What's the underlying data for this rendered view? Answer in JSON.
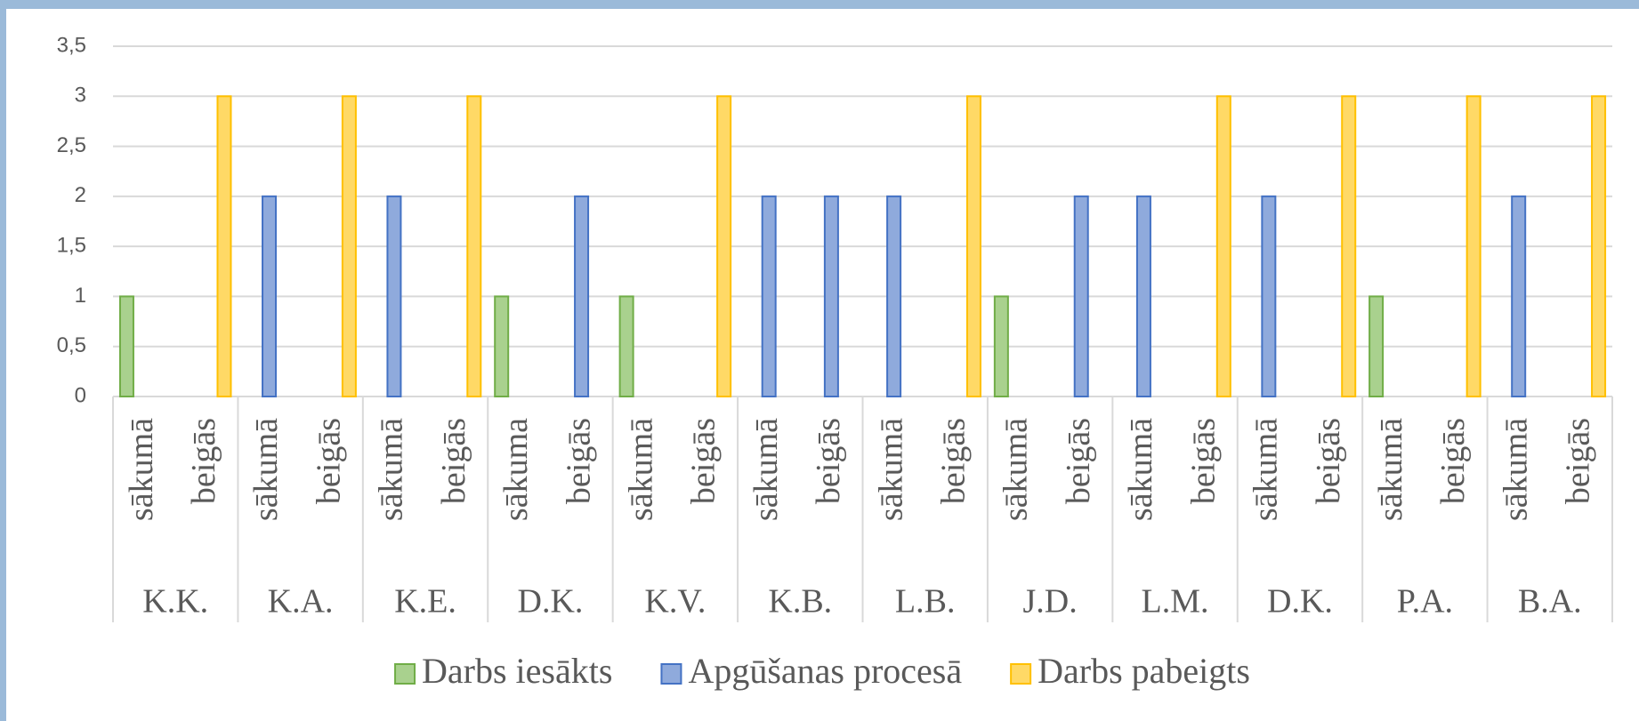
{
  "chart_data": {
    "type": "bar",
    "groups": [
      "K.K.",
      "K.A.",
      "K.E.",
      "D.K.",
      "K.V.",
      "K.B.",
      "L.B.",
      "J.D.",
      "L.M.",
      "D.K.",
      "P.A.",
      "B.A."
    ],
    "categories": [
      "sākumā",
      "beigās",
      "sākumā",
      "beigās",
      "sākumā",
      "beigās",
      "sākuma",
      "beigās",
      "sākumā",
      "beigās",
      "sākumā",
      "beigās",
      "sākumā",
      "beigās",
      "sākumā",
      "beigās",
      "sākumā",
      "beigās",
      "sākumā",
      "beigās",
      "sākumā",
      "beigās",
      "sākumā",
      "beigās"
    ],
    "series": [
      {
        "name": "Darbs iesākts",
        "color": "#a9d18e",
        "edge": "#70ad47",
        "values": [
          1,
          null,
          null,
          null,
          null,
          null,
          1,
          null,
          1,
          null,
          null,
          null,
          null,
          null,
          1,
          null,
          null,
          null,
          null,
          null,
          1,
          null,
          null,
          null
        ]
      },
      {
        "name": "Apgūšanas procesā",
        "color": "#8faadc",
        "edge": "#4472c4",
        "values": [
          null,
          null,
          2,
          null,
          2,
          null,
          null,
          2,
          null,
          null,
          2,
          2,
          2,
          null,
          null,
          2,
          2,
          null,
          2,
          null,
          null,
          null,
          2,
          null
        ]
      },
      {
        "name": "Darbs pabeigts",
        "color": "#ffd966",
        "edge": "#ffc000",
        "values": [
          null,
          3,
          null,
          3,
          null,
          3,
          null,
          null,
          null,
          3,
          null,
          null,
          null,
          3,
          null,
          null,
          null,
          3,
          null,
          3,
          null,
          3,
          null,
          3
        ]
      }
    ],
    "ylim": [
      0,
      3.5
    ],
    "yticks": [
      0,
      {
        "value": 0.5,
        "label": "0,5"
      },
      1,
      {
        "value": 1.5,
        "label": "1,5"
      },
      2,
      {
        "value": 2.5,
        "label": "2,5"
      },
      3,
      {
        "value": 3.5,
        "label": "3,5"
      }
    ],
    "grid": true,
    "legend": "bottom"
  }
}
